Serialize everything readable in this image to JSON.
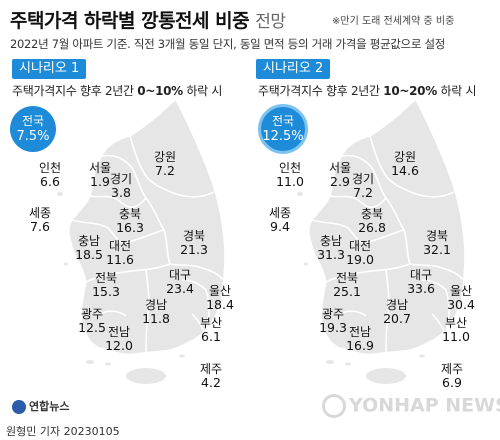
{
  "title": "주택가격 하락별 깡통전세 비중",
  "title_suffix": "전망",
  "note": "※만기 도래 전세계약 중 비중",
  "subtitle": "2022년 7월 아파트 기준. 직전 3개월 동일 단지, 동일 면적 등의 거래 가격을 평균값으로 설정",
  "colors": {
    "accent": "#1e8bd8",
    "land": "#e6e6e6",
    "border": "#ffffff"
  },
  "scenarios": [
    {
      "badge": "시나리오 1",
      "desc_prefix": "주택가격지수 향후 2년간 ",
      "desc_range": "0~10%",
      "desc_suffix": " 하락 시",
      "national": {
        "label": "전국",
        "value": "7.5%"
      },
      "regions": [
        {
          "name": "인천",
          "value": "6.6"
        },
        {
          "name": "서울",
          "value": "1.9"
        },
        {
          "name": "경기",
          "value": "3.8"
        },
        {
          "name": "강원",
          "value": "7.2"
        },
        {
          "name": "세종",
          "value": "7.6"
        },
        {
          "name": "충북",
          "value": "16.3"
        },
        {
          "name": "충남",
          "value": "18.5"
        },
        {
          "name": "대전",
          "value": "11.6"
        },
        {
          "name": "경북",
          "value": "21.3"
        },
        {
          "name": "전북",
          "value": "15.3"
        },
        {
          "name": "대구",
          "value": "23.4"
        },
        {
          "name": "울산",
          "value": "18.4"
        },
        {
          "name": "광주",
          "value": "12.5"
        },
        {
          "name": "경남",
          "value": "11.8"
        },
        {
          "name": "전남",
          "value": "12.0"
        },
        {
          "name": "부산",
          "value": "6.1"
        },
        {
          "name": "제주",
          "value": "4.2"
        }
      ]
    },
    {
      "badge": "시나리오 2",
      "desc_prefix": "주택가격지수 향후 2년간 ",
      "desc_range": "10~20%",
      "desc_suffix": " 하락 시",
      "national": {
        "label": "전국",
        "value": "12.5%"
      },
      "regions": [
        {
          "name": "인천",
          "value": "11.0"
        },
        {
          "name": "서울",
          "value": "2.9"
        },
        {
          "name": "경기",
          "value": "7.2"
        },
        {
          "name": "강원",
          "value": "14.6"
        },
        {
          "name": "세종",
          "value": "9.4"
        },
        {
          "name": "충북",
          "value": "26.8"
        },
        {
          "name": "충남",
          "value": "31.3"
        },
        {
          "name": "대전",
          "value": "19.0"
        },
        {
          "name": "경북",
          "value": "32.1"
        },
        {
          "name": "전북",
          "value": "25.1"
        },
        {
          "name": "대구",
          "value": "33.6"
        },
        {
          "name": "울산",
          "value": "30.4"
        },
        {
          "name": "광주",
          "value": "19.3"
        },
        {
          "name": "경남",
          "value": "20.7"
        },
        {
          "name": "전남",
          "value": "16.9"
        },
        {
          "name": "부산",
          "value": "11.0"
        },
        {
          "name": "제주",
          "value": "6.9"
        }
      ]
    }
  ],
  "logo": "연합뉴스",
  "credit": "원형민 기자  20230105",
  "watermark": "YONHAP NEWS"
}
